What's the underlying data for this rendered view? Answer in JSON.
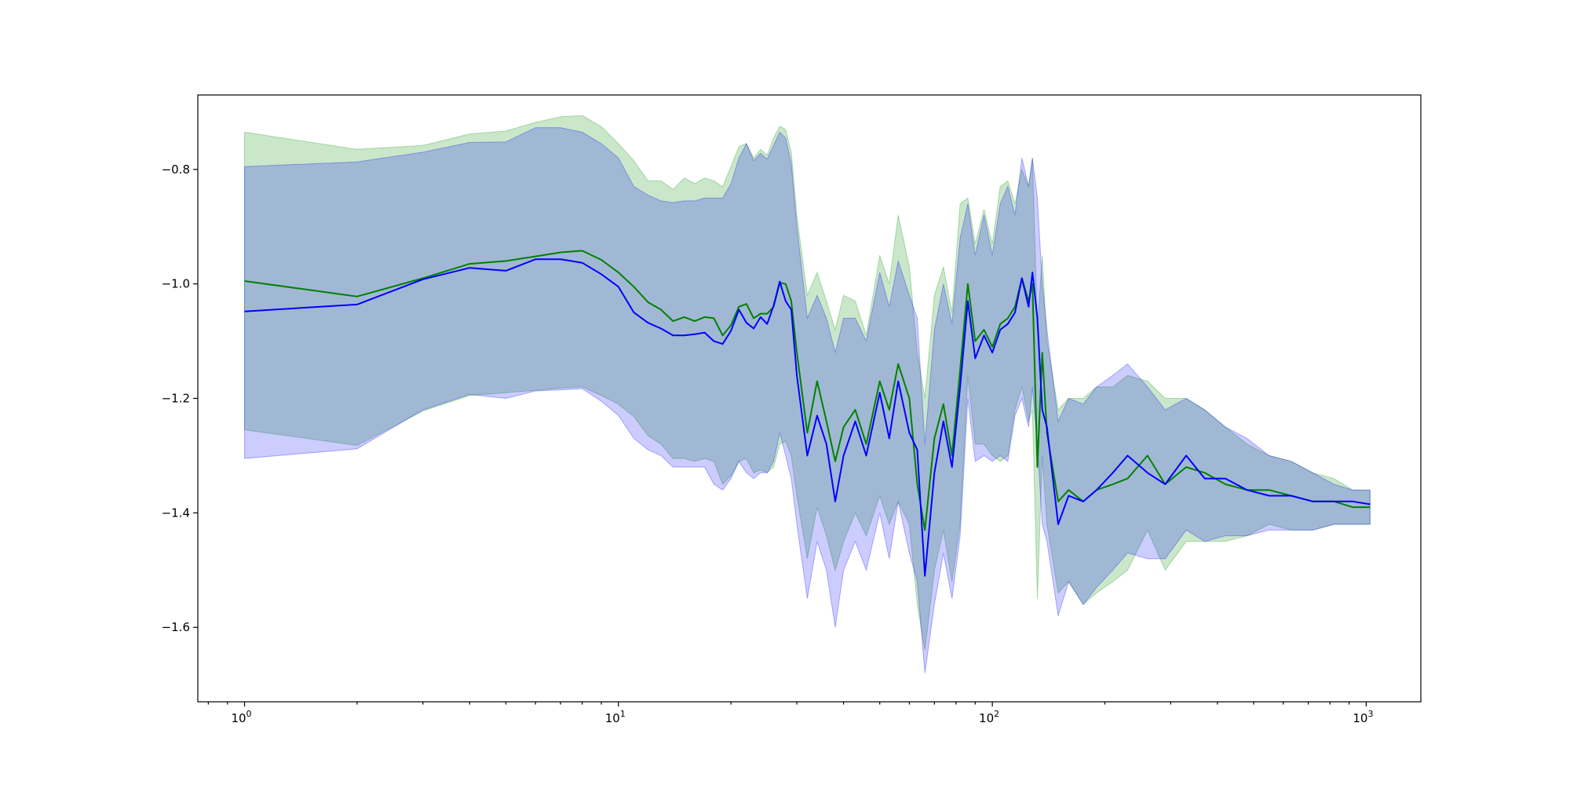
{
  "chart_data": {
    "type": "line",
    "title": "",
    "xlabel": "",
    "ylabel": "",
    "xscale": "log",
    "xlim": [
      0.75,
      1400
    ],
    "ylim": [
      -1.73,
      -0.67
    ],
    "grid": false,
    "legend": "none",
    "x_ticks": [
      {
        "value": 1,
        "base": "10",
        "exp": "0"
      },
      {
        "value": 10,
        "base": "10",
        "exp": "1"
      },
      {
        "value": 100,
        "base": "10",
        "exp": "2"
      },
      {
        "value": 1000,
        "base": "10",
        "exp": "3"
      }
    ],
    "y_ticks": [
      {
        "value": -1.6,
        "label": "−1.6"
      },
      {
        "value": -1.4,
        "label": "−1.4"
      },
      {
        "value": -1.2,
        "label": "−1.2"
      },
      {
        "value": -1.0,
        "label": "−1.0"
      },
      {
        "value": -0.8,
        "label": "−0.8"
      }
    ],
    "series": [
      {
        "color": "#008000",
        "band_color": "#2ca02c",
        "band_opacity": 0.25,
        "x": [
          1,
          2,
          3,
          4,
          5,
          6,
          7,
          8,
          9,
          10,
          11,
          12,
          13,
          14,
          15,
          16,
          17,
          18,
          19,
          20,
          21,
          22,
          23,
          24,
          25,
          26,
          27,
          28,
          29,
          30,
          32,
          34,
          36,
          38,
          40,
          43,
          46,
          50,
          53,
          56,
          60,
          63,
          66,
          70,
          74,
          78,
          82,
          86,
          90,
          95,
          100,
          105,
          110,
          115,
          120,
          125,
          128,
          132,
          136,
          140,
          150,
          160,
          175,
          190,
          210,
          230,
          260,
          290,
          330,
          370,
          420,
          480,
          550,
          630,
          720,
          820,
          920,
          1024
        ],
        "mean": [
          -0.995,
          -1.022,
          -0.99,
          -0.965,
          -0.96,
          -0.952,
          -0.945,
          -0.942,
          -0.958,
          -0.98,
          -1.005,
          -1.032,
          -1.045,
          -1.065,
          -1.058,
          -1.065,
          -1.058,
          -1.06,
          -1.09,
          -1.072,
          -1.04,
          -1.035,
          -1.06,
          -1.052,
          -1.052,
          -1.04,
          -0.998,
          -1.0,
          -1.03,
          -1.12,
          -1.26,
          -1.17,
          -1.24,
          -1.31,
          -1.25,
          -1.22,
          -1.28,
          -1.17,
          -1.22,
          -1.14,
          -1.2,
          -1.35,
          -1.43,
          -1.27,
          -1.21,
          -1.3,
          -1.15,
          -1.0,
          -1.1,
          -1.08,
          -1.11,
          -1.07,
          -1.06,
          -1.04,
          -0.99,
          -1.03,
          -1.0,
          -1.32,
          -1.12,
          -1.26,
          -1.38,
          -1.36,
          -1.38,
          -1.36,
          -1.35,
          -1.34,
          -1.3,
          -1.35,
          -1.32,
          -1.33,
          -1.35,
          -1.36,
          -1.36,
          -1.37,
          -1.38,
          -1.38,
          -1.39,
          -1.39
        ],
        "upper": [
          -0.735,
          -0.765,
          -0.758,
          -0.738,
          -0.733,
          -0.718,
          -0.708,
          -0.706,
          -0.725,
          -0.755,
          -0.785,
          -0.82,
          -0.82,
          -0.835,
          -0.815,
          -0.825,
          -0.815,
          -0.82,
          -0.83,
          -0.795,
          -0.76,
          -0.755,
          -0.78,
          -0.765,
          -0.775,
          -0.745,
          -0.725,
          -0.73,
          -0.77,
          -0.88,
          -1.02,
          -0.98,
          -1.03,
          -1.08,
          -1.02,
          -1.03,
          -1.09,
          -0.95,
          -1.0,
          -0.88,
          -0.97,
          -1.12,
          -1.2,
          -1.02,
          -0.97,
          -1.05,
          -0.86,
          -0.85,
          -0.93,
          -0.87,
          -0.93,
          -0.83,
          -0.82,
          -0.86,
          -0.8,
          -0.83,
          -0.78,
          -1.08,
          -0.95,
          -1.1,
          -1.22,
          -1.2,
          -1.2,
          -1.18,
          -1.18,
          -1.16,
          -1.17,
          -1.2,
          -1.2,
          -1.22,
          -1.25,
          -1.28,
          -1.3,
          -1.31,
          -1.33,
          -1.34,
          -1.36,
          -1.36
        ],
        "lower": [
          -1.255,
          -1.282,
          -1.222,
          -1.195,
          -1.19,
          -1.186,
          -1.182,
          -1.18,
          -1.195,
          -1.21,
          -1.232,
          -1.265,
          -1.28,
          -1.305,
          -1.305,
          -1.31,
          -1.305,
          -1.31,
          -1.35,
          -1.335,
          -1.31,
          -1.305,
          -1.33,
          -1.325,
          -1.33,
          -1.32,
          -1.28,
          -1.275,
          -1.3,
          -1.37,
          -1.48,
          -1.39,
          -1.44,
          -1.5,
          -1.45,
          -1.4,
          -1.44,
          -1.37,
          -1.42,
          -1.38,
          -1.42,
          -1.56,
          -1.64,
          -1.5,
          -1.43,
          -1.52,
          -1.42,
          -1.16,
          -1.28,
          -1.28,
          -1.3,
          -1.31,
          -1.3,
          -1.22,
          -1.18,
          -1.24,
          -1.22,
          -1.55,
          -1.3,
          -1.42,
          -1.54,
          -1.52,
          -1.56,
          -1.54,
          -1.52,
          -1.5,
          -1.43,
          -1.5,
          -1.45,
          -1.45,
          -1.45,
          -1.44,
          -1.42,
          -1.43,
          -1.43,
          -1.42,
          -1.42,
          -1.42
        ]
      },
      {
        "color": "#0000ff",
        "band_color": "#0000ff",
        "band_opacity": 0.2,
        "x": [
          1,
          2,
          3,
          4,
          5,
          6,
          7,
          8,
          9,
          10,
          11,
          12,
          13,
          14,
          15,
          16,
          17,
          18,
          19,
          20,
          21,
          22,
          23,
          24,
          25,
          26,
          27,
          28,
          29,
          30,
          32,
          34,
          36,
          38,
          40,
          43,
          46,
          50,
          53,
          56,
          60,
          63,
          66,
          70,
          74,
          78,
          82,
          86,
          90,
          95,
          100,
          105,
          110,
          115,
          120,
          125,
          128,
          132,
          136,
          140,
          150,
          160,
          175,
          190,
          210,
          230,
          260,
          290,
          330,
          370,
          420,
          480,
          550,
          630,
          720,
          820,
          920,
          1024
        ],
        "mean": [
          -1.048,
          -1.036,
          -0.992,
          -0.972,
          -0.977,
          -0.957,
          -0.957,
          -0.963,
          -0.983,
          -1.005,
          -1.05,
          -1.068,
          -1.078,
          -1.09,
          -1.09,
          -1.088,
          -1.085,
          -1.1,
          -1.105,
          -1.082,
          -1.045,
          -1.068,
          -1.078,
          -1.058,
          -1.07,
          -1.038,
          -0.996,
          -1.03,
          -1.045,
          -1.16,
          -1.3,
          -1.23,
          -1.28,
          -1.38,
          -1.3,
          -1.24,
          -1.3,
          -1.19,
          -1.27,
          -1.17,
          -1.26,
          -1.29,
          -1.51,
          -1.33,
          -1.24,
          -1.32,
          -1.18,
          -1.03,
          -1.13,
          -1.09,
          -1.12,
          -1.08,
          -1.07,
          -1.05,
          -0.99,
          -1.04,
          -0.98,
          -1.06,
          -1.22,
          -1.25,
          -1.42,
          -1.37,
          -1.38,
          -1.36,
          -1.33,
          -1.3,
          -1.33,
          -1.35,
          -1.3,
          -1.34,
          -1.34,
          -1.36,
          -1.37,
          -1.37,
          -1.38,
          -1.38,
          -1.38,
          -1.385
        ],
        "upper": [
          -0.795,
          -0.787,
          -0.77,
          -0.753,
          -0.752,
          -0.727,
          -0.727,
          -0.735,
          -0.755,
          -0.78,
          -0.83,
          -0.845,
          -0.855,
          -0.858,
          -0.855,
          -0.855,
          -0.85,
          -0.85,
          -0.85,
          -0.825,
          -0.78,
          -0.755,
          -0.785,
          -0.772,
          -0.782,
          -0.758,
          -0.735,
          -0.745,
          -0.79,
          -0.9,
          -1.06,
          -1.02,
          -1.06,
          -1.12,
          -1.06,
          -1.06,
          -1.1,
          -0.98,
          -1.04,
          -0.96,
          -1.02,
          -1.06,
          -1.28,
          -1.08,
          -1.0,
          -1.07,
          -0.92,
          -0.86,
          -0.95,
          -0.88,
          -0.95,
          -0.86,
          -0.83,
          -0.88,
          -0.78,
          -0.83,
          -0.78,
          -0.85,
          -1.0,
          -1.08,
          -1.24,
          -1.2,
          -1.21,
          -1.18,
          -1.16,
          -1.14,
          -1.18,
          -1.22,
          -1.2,
          -1.22,
          -1.25,
          -1.27,
          -1.3,
          -1.31,
          -1.33,
          -1.35,
          -1.36,
          -1.36
        ],
        "lower": [
          -1.305,
          -1.288,
          -1.22,
          -1.193,
          -1.2,
          -1.187,
          -1.185,
          -1.183,
          -1.205,
          -1.23,
          -1.27,
          -1.29,
          -1.3,
          -1.32,
          -1.32,
          -1.32,
          -1.32,
          -1.35,
          -1.36,
          -1.34,
          -1.31,
          -1.33,
          -1.34,
          -1.33,
          -1.33,
          -1.31,
          -1.26,
          -1.3,
          -1.34,
          -1.42,
          -1.55,
          -1.45,
          -1.5,
          -1.6,
          -1.5,
          -1.45,
          -1.5,
          -1.4,
          -1.48,
          -1.38,
          -1.47,
          -1.52,
          -1.68,
          -1.56,
          -1.47,
          -1.55,
          -1.44,
          -1.2,
          -1.31,
          -1.3,
          -1.31,
          -1.3,
          -1.31,
          -1.23,
          -1.2,
          -1.25,
          -1.18,
          -1.28,
          -1.42,
          -1.45,
          -1.58,
          -1.52,
          -1.56,
          -1.53,
          -1.5,
          -1.47,
          -1.48,
          -1.48,
          -1.43,
          -1.45,
          -1.44,
          -1.44,
          -1.43,
          -1.43,
          -1.43,
          -1.42,
          -1.42,
          -1.42
        ]
      }
    ]
  }
}
